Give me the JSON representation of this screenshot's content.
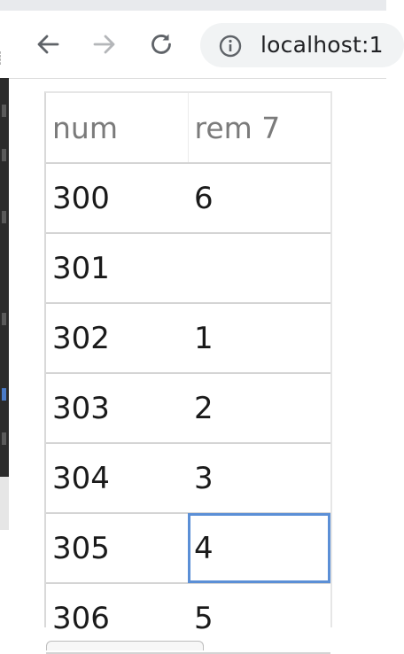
{
  "browser": {
    "url": "localhost:1"
  },
  "table": {
    "headers": [
      "num",
      "rem 7"
    ],
    "rows": [
      {
        "num": "300",
        "rem": "6"
      },
      {
        "num": "301",
        "rem": ""
      },
      {
        "num": "302",
        "rem": "1"
      },
      {
        "num": "303",
        "rem": "2"
      },
      {
        "num": "304",
        "rem": "3"
      },
      {
        "num": "305",
        "rem": "4"
      },
      {
        "num": "306",
        "rem": "5"
      }
    ]
  },
  "colors": {
    "selection": "#5b8fd6",
    "header_text": "#7b7b7b",
    "grid_line": "#d4d4d4"
  },
  "icons": [
    "back-arrow-icon",
    "forward-arrow-icon",
    "reload-icon",
    "info-icon"
  ]
}
